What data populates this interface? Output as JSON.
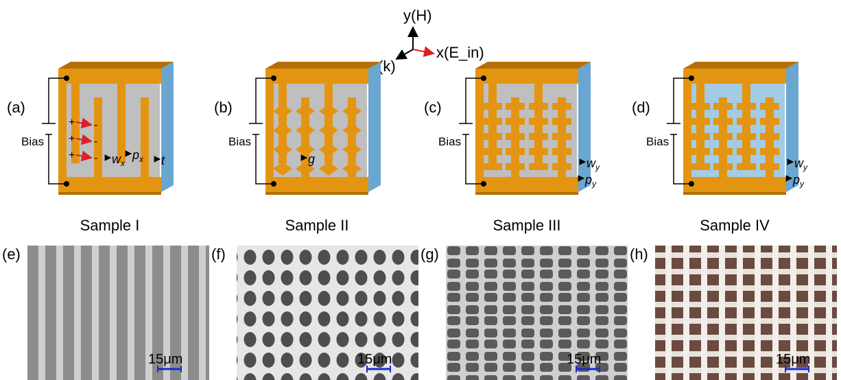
{
  "axes": {
    "y_label": "y(H)",
    "x_label": "x(E_in)",
    "z_label": "z(k)"
  },
  "panels": [
    {
      "letter": "(a)",
      "caption": "Sample I",
      "bias": "Bias",
      "dims": [
        "w_x",
        "p_x",
        "t"
      ],
      "charges": [
        "+",
        "-"
      ]
    },
    {
      "letter": "(b)",
      "caption": "Sample II",
      "bias": "Bias",
      "dims": [
        "g"
      ]
    },
    {
      "letter": "(c)",
      "caption": "Sample  III",
      "bias": "Bias",
      "dims": [
        "w_y",
        "p_y"
      ]
    },
    {
      "letter": "(d)",
      "caption": "Sample IV",
      "bias": "Bias",
      "dims": [
        "w_y",
        "p_y"
      ]
    }
  ],
  "micrographs": [
    {
      "letter": "(e)",
      "scale": "15μm"
    },
    {
      "letter": "(f)",
      "scale": "15μm"
    },
    {
      "letter": "(g)",
      "scale": "15μm"
    },
    {
      "letter": "(h)",
      "scale": "15μm"
    }
  ],
  "colors": {
    "metal": "#e39512",
    "metal_side": "#b56f06",
    "substrate_side": "#6aa6d0",
    "substrate_face": "#a3cbe4",
    "gray_face": "#bfbfbf",
    "arrow_red": "#e02020",
    "scale_bar": "#1a2acc"
  }
}
